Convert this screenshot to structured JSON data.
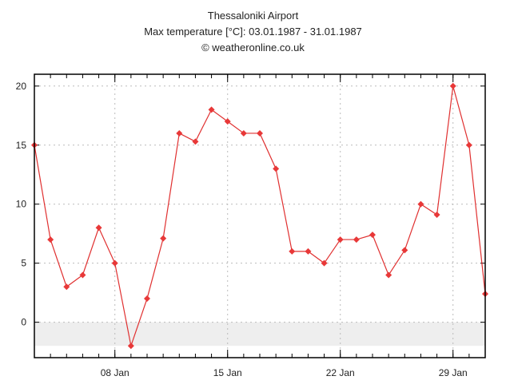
{
  "chart_data": {
    "type": "line",
    "title": "Thessaloniki Airport",
    "subtitle": "Max temperature [°C]: 03.01.1987 - 31.01.1987",
    "credit": "© weatheronline.co.uk",
    "xlabel": "",
    "ylabel": "",
    "x_start_day": 3,
    "x": [
      3,
      4,
      5,
      6,
      7,
      8,
      9,
      10,
      11,
      12,
      13,
      14,
      15,
      16,
      17,
      18,
      19,
      20,
      21,
      22,
      23,
      24,
      25,
      26,
      27,
      28,
      29,
      30,
      31
    ],
    "values": [
      15,
      7,
      3,
      4,
      8,
      5,
      -2,
      2,
      7.1,
      16,
      15.3,
      18,
      17,
      16,
      16,
      13,
      6,
      6,
      5,
      7,
      7,
      7.4,
      4,
      6.1,
      10,
      9.1,
      20,
      15,
      2.4
    ],
    "xlim": [
      3,
      31
    ],
    "ylim": [
      -3,
      21
    ],
    "x_ticks": [
      {
        "day": 8,
        "label": "08 Jan"
      },
      {
        "day": 15,
        "label": "15 Jan"
      },
      {
        "day": 22,
        "label": "22 Jan"
      },
      {
        "day": 29,
        "label": "29 Jan"
      }
    ],
    "y_ticks": [
      0,
      5,
      10,
      15,
      20
    ],
    "below_zero_band": [
      -2,
      0
    ],
    "grid": true,
    "colors": {
      "line": "#e03030",
      "marker": "#e83838",
      "band": "#eeeeee",
      "grid": "#bbbbbb"
    }
  }
}
